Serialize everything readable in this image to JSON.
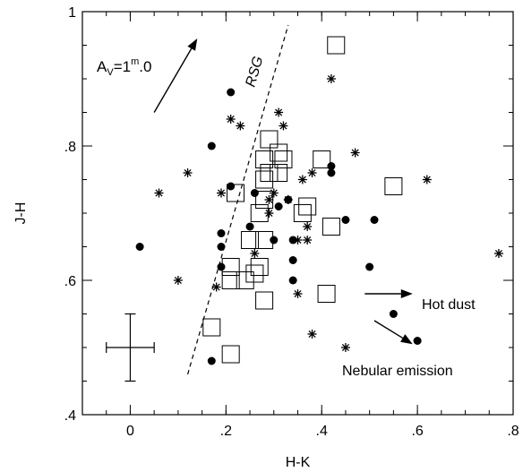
{
  "chart_data": {
    "type": "scatter",
    "xlabel": "H-K",
    "ylabel": "J-H",
    "xlim": [
      -0.1,
      0.8
    ],
    "ylim": [
      0.4,
      1.0
    ],
    "x_ticks": [
      {
        "value": 0.0,
        "label": "0"
      },
      {
        "value": 0.2,
        "label": ".2"
      },
      {
        "value": 0.4,
        "label": ".4"
      },
      {
        "value": 0.6,
        "label": ".6"
      },
      {
        "value": 0.8,
        "label": ".8"
      }
    ],
    "y_ticks": [
      {
        "value": 0.4,
        "label": ".4"
      },
      {
        "value": 0.6,
        "label": ".6"
      },
      {
        "value": 0.8,
        "label": ".8"
      },
      {
        "value": 1.0,
        "label": "1"
      }
    ],
    "x_minor_step": 0.05,
    "y_minor_step": 0.05,
    "grid": false,
    "series": [
      {
        "marker": "circle",
        "points": [
          [
            0.02,
            0.65
          ],
          [
            0.17,
            0.8
          ],
          [
            0.21,
            0.88
          ],
          [
            0.21,
            0.74
          ],
          [
            0.19,
            0.67
          ],
          [
            0.19,
            0.65
          ],
          [
            0.19,
            0.62
          ],
          [
            0.17,
            0.48
          ],
          [
            0.26,
            0.73
          ],
          [
            0.25,
            0.68
          ],
          [
            0.3,
            0.66
          ],
          [
            0.31,
            0.71
          ],
          [
            0.34,
            0.66
          ],
          [
            0.34,
            0.63
          ],
          [
            0.34,
            0.6
          ],
          [
            0.42,
            0.77
          ],
          [
            0.42,
            0.76
          ],
          [
            0.45,
            0.69
          ],
          [
            0.51,
            0.69
          ],
          [
            0.5,
            0.62
          ],
          [
            0.55,
            0.55
          ],
          [
            0.6,
            0.51
          ],
          [
            0.33,
            0.72
          ]
        ]
      },
      {
        "marker": "asterisk",
        "points": [
          [
            0.06,
            0.73
          ],
          [
            0.1,
            0.6
          ],
          [
            0.12,
            0.76
          ],
          [
            0.21,
            0.84
          ],
          [
            0.23,
            0.83
          ],
          [
            0.19,
            0.73
          ],
          [
            0.18,
            0.59
          ],
          [
            0.26,
            0.64
          ],
          [
            0.29,
            0.72
          ],
          [
            0.3,
            0.73
          ],
          [
            0.31,
            0.85
          ],
          [
            0.32,
            0.83
          ],
          [
            0.33,
            0.72
          ],
          [
            0.35,
            0.66
          ],
          [
            0.37,
            0.66
          ],
          [
            0.36,
            0.75
          ],
          [
            0.38,
            0.76
          ],
          [
            0.37,
            0.68
          ],
          [
            0.38,
            0.52
          ],
          [
            0.42,
            0.9
          ],
          [
            0.47,
            0.79
          ],
          [
            0.45,
            0.5
          ],
          [
            0.62,
            0.75
          ],
          [
            0.77,
            0.64
          ],
          [
            0.35,
            0.58
          ],
          [
            0.29,
            0.7
          ]
        ]
      },
      {
        "marker": "open-square",
        "points": [
          [
            0.43,
            0.95
          ],
          [
            0.21,
            0.6
          ],
          [
            0.24,
            0.6
          ],
          [
            0.26,
            0.61
          ],
          [
            0.28,
            0.57
          ],
          [
            0.17,
            0.53
          ],
          [
            0.21,
            0.49
          ],
          [
            0.21,
            0.62
          ],
          [
            0.27,
            0.62
          ],
          [
            0.25,
            0.66
          ],
          [
            0.28,
            0.66
          ],
          [
            0.27,
            0.7
          ],
          [
            0.28,
            0.72
          ],
          [
            0.28,
            0.75
          ],
          [
            0.28,
            0.78
          ],
          [
            0.29,
            0.81
          ],
          [
            0.31,
            0.79
          ],
          [
            0.32,
            0.78
          ],
          [
            0.31,
            0.76
          ],
          [
            0.22,
            0.73
          ],
          [
            0.36,
            0.7
          ],
          [
            0.37,
            0.71
          ],
          [
            0.4,
            0.78
          ],
          [
            0.42,
            0.68
          ],
          [
            0.41,
            0.58
          ],
          [
            0.55,
            0.74
          ],
          [
            0.29,
            0.76
          ]
        ]
      }
    ],
    "error_bar": {
      "x": 0.0,
      "y": 0.5,
      "xerr": 0.05,
      "yerr": 0.05
    },
    "annotations": {
      "rsg_line": {
        "from": [
          0.12,
          0.46
        ],
        "to": [
          0.33,
          0.98
        ],
        "label": "RSG"
      },
      "extinction_vector": {
        "from": [
          0.05,
          0.85
        ],
        "to": [
          0.14,
          0.96
        ],
        "label": "Av=1m.0"
      },
      "hot_dust_vector": {
        "from": [
          0.49,
          0.58
        ],
        "to": [
          0.59,
          0.58
        ],
        "label": "Hot dust"
      },
      "nebular_vector": {
        "from": [
          0.51,
          0.54
        ],
        "to": [
          0.59,
          0.505
        ],
        "label": "Nebular emission"
      }
    }
  }
}
